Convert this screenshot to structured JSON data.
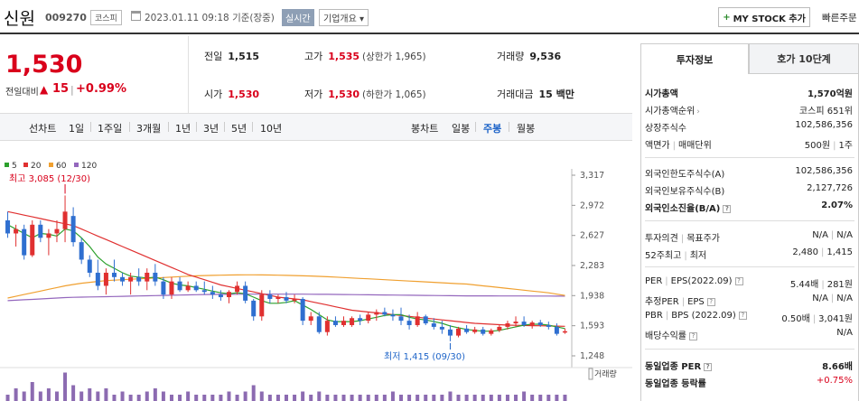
{
  "header": {
    "company_name": "신원",
    "company_code": "009270",
    "market": "코스피",
    "datetime": "2023.01.11 09:18",
    "basis": "기준(장중)",
    "realtime_badge": "실시간",
    "overview_dropdown": "기업개요 ▾",
    "mystock_label": "MY STOCK 추가",
    "quick_order": "빠른주문"
  },
  "price": {
    "current": "1,530",
    "change_label": "전일대비",
    "change_arrow": "▲",
    "change_value": "15",
    "change_divider": "|",
    "change_rate": "+0.99%"
  },
  "stats": {
    "prev_close_label": "전일",
    "prev_close": "1,515",
    "high_label": "고가",
    "high": "1,535",
    "upper_limit": "(상한가 1,965)",
    "volume_label": "거래량",
    "volume": "9,536",
    "open_label": "시가",
    "open": "1,530",
    "low_label": "저가",
    "low": "1,530",
    "lower_limit": "(하한가 1,065)",
    "amount_label": "거래대금",
    "amount": "15 백만"
  },
  "period_tabs": {
    "line_chart": "선차트",
    "items": [
      "1일",
      "1주일",
      "3개월",
      "1년",
      "3년",
      "5년",
      "10년"
    ],
    "candle_chart": "봉차트",
    "candle_items": [
      "일봉",
      "주봉",
      "월봉"
    ],
    "active_candle": "주봉"
  },
  "chart_data": {
    "type": "candlestick",
    "legend": [
      {
        "name": "5",
        "color": "#2ca02c"
      },
      {
        "name": "20",
        "color": "#e03030"
      },
      {
        "name": "60",
        "color": "#f0a030"
      },
      {
        "name": "120",
        "color": "#9467bd"
      }
    ],
    "y_ticks": [
      "3,317",
      "2,972",
      "2,627",
      "2,283",
      "1,938",
      "1,593",
      "1,248"
    ],
    "ylim": [
      1248,
      3317
    ],
    "high_annotation": "최고 3,085 (12/30)",
    "low_annotation": "최저 1,415 (09/30)",
    "volume_label": "거래량",
    "up_color": "#e03030",
    "down_color": "#2f6fd0",
    "candles": [
      {
        "o": 2800,
        "h": 2900,
        "l": 2600,
        "c": 2650
      },
      {
        "o": 2650,
        "h": 2750,
        "l": 2500,
        "c": 2700
      },
      {
        "o": 2700,
        "h": 2750,
        "l": 2350,
        "c": 2400
      },
      {
        "o": 2400,
        "h": 2800,
        "l": 2380,
        "c": 2750
      },
      {
        "o": 2750,
        "h": 2800,
        "l": 2550,
        "c": 2600
      },
      {
        "o": 2600,
        "h": 2700,
        "l": 2400,
        "c": 2650
      },
      {
        "o": 2650,
        "h": 2800,
        "l": 2550,
        "c": 2700
      },
      {
        "o": 2700,
        "h": 3085,
        "l": 2550,
        "c": 2900
      },
      {
        "o": 2850,
        "h": 2950,
        "l": 2500,
        "c": 2550
      },
      {
        "o": 2550,
        "h": 2600,
        "l": 2300,
        "c": 2350
      },
      {
        "o": 2350,
        "h": 2400,
        "l": 2150,
        "c": 2200
      },
      {
        "o": 2200,
        "h": 2350,
        "l": 2000,
        "c": 2050
      },
      {
        "o": 2050,
        "h": 2250,
        "l": 1950,
        "c": 2200
      },
      {
        "o": 2200,
        "h": 2350,
        "l": 2100,
        "c": 2150
      },
      {
        "o": 2150,
        "h": 2200,
        "l": 2050,
        "c": 2100
      },
      {
        "o": 2100,
        "h": 2200,
        "l": 1950,
        "c": 2150
      },
      {
        "o": 2150,
        "h": 2250,
        "l": 2050,
        "c": 2100
      },
      {
        "o": 2100,
        "h": 2250,
        "l": 2000,
        "c": 2200
      },
      {
        "o": 2200,
        "h": 2300,
        "l": 2050,
        "c": 2100
      },
      {
        "o": 2100,
        "h": 2150,
        "l": 1900,
        "c": 1950
      },
      {
        "o": 1950,
        "h": 2150,
        "l": 1900,
        "c": 2100
      },
      {
        "o": 2100,
        "h": 2150,
        "l": 1980,
        "c": 2000
      },
      {
        "o": 2000,
        "h": 2100,
        "l": 1980,
        "c": 2050
      },
      {
        "o": 2050,
        "h": 2100,
        "l": 1980,
        "c": 2000
      },
      {
        "o": 2000,
        "h": 2100,
        "l": 1950,
        "c": 1980
      },
      {
        "o": 1980,
        "h": 2050,
        "l": 1900,
        "c": 1950
      },
      {
        "o": 1950,
        "h": 2000,
        "l": 1880,
        "c": 1920
      },
      {
        "o": 1920,
        "h": 2000,
        "l": 1850,
        "c": 1980
      },
      {
        "o": 1980,
        "h": 2100,
        "l": 1950,
        "c": 2050
      },
      {
        "o": 2050,
        "h": 2100,
        "l": 1850,
        "c": 1880
      },
      {
        "o": 1880,
        "h": 1900,
        "l": 1650,
        "c": 1700
      },
      {
        "o": 1700,
        "h": 2000,
        "l": 1650,
        "c": 1950
      },
      {
        "o": 1950,
        "h": 2000,
        "l": 1850,
        "c": 1900
      },
      {
        "o": 1900,
        "h": 1950,
        "l": 1850,
        "c": 1920
      },
      {
        "o": 1920,
        "h": 1980,
        "l": 1850,
        "c": 1880
      },
      {
        "o": 1880,
        "h": 1950,
        "l": 1850,
        "c": 1900
      },
      {
        "o": 1900,
        "h": 1920,
        "l": 1600,
        "c": 1650
      },
      {
        "o": 1650,
        "h": 1750,
        "l": 1600,
        "c": 1700
      },
      {
        "o": 1700,
        "h": 1750,
        "l": 1500,
        "c": 1520
      },
      {
        "o": 1520,
        "h": 1700,
        "l": 1480,
        "c": 1650
      },
      {
        "o": 1650,
        "h": 1700,
        "l": 1580,
        "c": 1600
      },
      {
        "o": 1600,
        "h": 1700,
        "l": 1580,
        "c": 1650
      },
      {
        "o": 1600,
        "h": 1700,
        "l": 1580,
        "c": 1680
      },
      {
        "o": 1680,
        "h": 1720,
        "l": 1600,
        "c": 1650
      },
      {
        "o": 1650,
        "h": 1750,
        "l": 1620,
        "c": 1720
      },
      {
        "o": 1720,
        "h": 1780,
        "l": 1650,
        "c": 1750
      },
      {
        "o": 1750,
        "h": 1800,
        "l": 1700,
        "c": 1720
      },
      {
        "o": 1720,
        "h": 1780,
        "l": 1650,
        "c": 1700
      },
      {
        "o": 1700,
        "h": 1800,
        "l": 1600,
        "c": 1650
      },
      {
        "o": 1650,
        "h": 1720,
        "l": 1550,
        "c": 1600
      },
      {
        "o": 1600,
        "h": 1750,
        "l": 1580,
        "c": 1700
      },
      {
        "o": 1700,
        "h": 1720,
        "l": 1600,
        "c": 1620
      },
      {
        "o": 1620,
        "h": 1680,
        "l": 1550,
        "c": 1580
      },
      {
        "o": 1580,
        "h": 1650,
        "l": 1500,
        "c": 1550
      },
      {
        "o": 1550,
        "h": 1600,
        "l": 1415,
        "c": 1480
      },
      {
        "o": 1480,
        "h": 1580,
        "l": 1460,
        "c": 1560
      },
      {
        "o": 1560,
        "h": 1600,
        "l": 1500,
        "c": 1520
      },
      {
        "o": 1520,
        "h": 1580,
        "l": 1500,
        "c": 1550
      },
      {
        "o": 1550,
        "h": 1580,
        "l": 1480,
        "c": 1500
      },
      {
        "o": 1500,
        "h": 1560,
        "l": 1480,
        "c": 1540
      },
      {
        "o": 1540,
        "h": 1600,
        "l": 1520,
        "c": 1580
      },
      {
        "o": 1580,
        "h": 1650,
        "l": 1550,
        "c": 1620
      },
      {
        "o": 1620,
        "h": 1700,
        "l": 1580,
        "c": 1640
      },
      {
        "o": 1640,
        "h": 1700,
        "l": 1580,
        "c": 1600
      },
      {
        "o": 1600,
        "h": 1650,
        "l": 1560,
        "c": 1630
      },
      {
        "o": 1630,
        "h": 1660,
        "l": 1580,
        "c": 1600
      },
      {
        "o": 1600,
        "h": 1640,
        "l": 1550,
        "c": 1580
      },
      {
        "o": 1580,
        "h": 1620,
        "l": 1480,
        "c": 1500
      },
      {
        "o": 1520,
        "h": 1560,
        "l": 1500,
        "c": 1530
      }
    ],
    "ma5": [
      2750,
      2700,
      2650,
      2600,
      2650,
      2640,
      2620,
      2700,
      2680,
      2600,
      2500,
      2380,
      2300,
      2250,
      2200,
      2160,
      2150,
      2140,
      2150,
      2120,
      2080,
      2060,
      2050,
      2030,
      2010,
      1990,
      1970,
      1960,
      1970,
      1960,
      1920,
      1880,
      1850,
      1850,
      1860,
      1880,
      1830,
      1780,
      1720,
      1660,
      1640,
      1640,
      1640,
      1650,
      1670,
      1690,
      1710,
      1720,
      1720,
      1690,
      1670,
      1660,
      1640,
      1620,
      1590,
      1570,
      1550,
      1540,
      1530,
      1530,
      1540,
      1560,
      1580,
      1600,
      1610,
      1610,
      1600,
      1580,
      1560
    ],
    "ma20": [
      2900,
      2880,
      2860,
      2840,
      2820,
      2800,
      2780,
      2760,
      2740,
      2700,
      2660,
      2620,
      2580,
      2540,
      2500,
      2460,
      2420,
      2380,
      2340,
      2300,
      2260,
      2220,
      2180,
      2150,
      2120,
      2090,
      2060,
      2040,
      2020,
      2000,
      1980,
      1960,
      1940,
      1920,
      1910,
      1900,
      1890,
      1870,
      1850,
      1830,
      1810,
      1790,
      1770,
      1760,
      1750,
      1740,
      1730,
      1720,
      1710,
      1700,
      1690,
      1680,
      1670,
      1660,
      1650,
      1640,
      1630,
      1620,
      1615,
      1610,
      1605,
      1600,
      1598,
      1596,
      1594,
      1592,
      1590,
      1588,
      1586
    ],
    "ma60": [
      1910,
      1930,
      1950,
      1970,
      1990,
      2010,
      2030,
      2050,
      2065,
      2080,
      2090,
      2100,
      2110,
      2115,
      2120,
      2125,
      2130,
      2135,
      2140,
      2145,
      2150,
      2155,
      2160,
      2165,
      2168,
      2170,
      2172,
      2174,
      2175,
      2176,
      2176,
      2175,
      2174,
      2172,
      2170,
      2168,
      2165,
      2162,
      2158,
      2154,
      2150,
      2145,
      2140,
      2135,
      2130,
      2125,
      2120,
      2115,
      2110,
      2105,
      2100,
      2095,
      2090,
      2085,
      2080,
      2075,
      2070,
      2060,
      2050,
      2040,
      2030,
      2020,
      2010,
      2000,
      1990,
      1980,
      1970,
      1955,
      1940
    ],
    "ma120": [
      1880,
      1885,
      1890,
      1895,
      1900,
      1905,
      1910,
      1915,
      1918,
      1920,
      1922,
      1924,
      1926,
      1928,
      1930,
      1932,
      1934,
      1936,
      1938,
      1940,
      1942,
      1944,
      1946,
      1948,
      1950,
      1951,
      1952,
      1953,
      1954,
      1955,
      1955,
      1955,
      1955,
      1955,
      1955,
      1955,
      1955,
      1954,
      1953,
      1952,
      1951,
      1950,
      1949,
      1948,
      1947,
      1946,
      1945,
      1944,
      1943,
      1942,
      1941,
      1940,
      1939,
      1938,
      1937,
      1936,
      1935,
      1935,
      1935,
      1935,
      1934,
      1934,
      1934,
      1934,
      1933,
      1933,
      1933,
      1932,
      1932
    ],
    "volumes": [
      0.2,
      0.4,
      0.3,
      0.6,
      0.3,
      0.4,
      0.3,
      0.9,
      0.5,
      0.3,
      0.4,
      0.3,
      0.4,
      0.2,
      0.3,
      0.2,
      0.2,
      0.3,
      0.4,
      0.3,
      0.2,
      0.2,
      0.3,
      0.2,
      0.2,
      0.2,
      0.2,
      0.3,
      0.2,
      0.3,
      0.5,
      0.3,
      0.2,
      0.2,
      0.2,
      0.2,
      0.3,
      0.2,
      0.3,
      0.2,
      0.2,
      0.2,
      0.2,
      0.2,
      0.2,
      0.2,
      0.2,
      0.3,
      0.2,
      0.2,
      0.2,
      0.2,
      0.2,
      0.2,
      0.3,
      0.2,
      0.2,
      0.2,
      0.2,
      0.2,
      0.2,
      0.2,
      0.2,
      0.3,
      0.2,
      0.2,
      0.2,
      0.2,
      0.2
    ]
  },
  "right_panel": {
    "tab_invest": "투자정보",
    "tab_order10": "호가 10단계",
    "market_cap_label": "시가총액",
    "market_cap": "1,570억원",
    "market_cap_rank_label": "시가총액순위",
    "market_cap_rank": "코스피 651위",
    "listed_shares_label": "상장주식수",
    "listed_shares": "102,586,356",
    "par_label": "액면가",
    "par_label2": "매매단위",
    "par": "500원",
    "unit": "1주",
    "foreign_limit_label": "외국인한도주식수(A)",
    "foreign_limit": "102,586,356",
    "foreign_hold_label": "외국인보유주식수(B)",
    "foreign_hold": "2,127,726",
    "foreign_rate_label": "외국인소진율(B/A)",
    "foreign_rate": "2.07%",
    "opinion_label": "투자의견",
    "target_label": "목표주가",
    "opinion": "N/A",
    "target": "N/A",
    "w52_label": "52주최고",
    "w52_low_label": "최저",
    "w52_high": "2,480",
    "w52_low": "1,415",
    "per_label": "PER",
    "eps_label": "EPS(2022.09)",
    "per": "5.44배",
    "eps": "281원",
    "est_per_label": "추정PER",
    "est_eps_label": "EPS",
    "est_per": "N/A",
    "est_eps": "N/A",
    "pbr_label": "PBR",
    "bps_label": "BPS (2022.09)",
    "pbr": "0.50배",
    "bps": "3,041원",
    "dividend_label": "배당수익률",
    "dividend": "N/A",
    "sector_per_label": "동일업종 PER",
    "sector_per": "8.66배",
    "sector_change_label": "동일업종 등락률",
    "sector_change": "+0.75%"
  }
}
